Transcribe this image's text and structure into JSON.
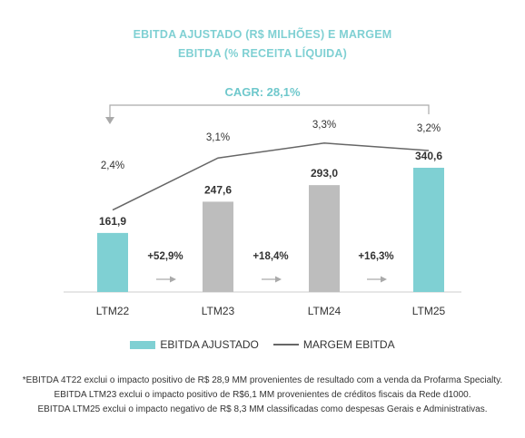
{
  "title_line1": "EBITDA AJUSTADO (R$ MILHÕES) E MARGEM",
  "title_line2": "EBITDA (% RECEITA LÍQUIDA)",
  "cagr": "CAGR: 28,1%",
  "colors": {
    "bar_highlight": "#7fd0d3",
    "bar_neutral": "#bdbdbd",
    "line": "#666666",
    "growth_arrow": "#aaaaaa"
  },
  "chart_data": {
    "type": "bar",
    "categories": [
      "LTM22",
      "LTM23",
      "LTM24",
      "LTM25"
    ],
    "series": [
      {
        "name": "EBITDA AJUSTADO",
        "type": "bar",
        "values": [
          161.9,
          247.6,
          293.0,
          340.6
        ],
        "labels": [
          "161,9",
          "247,6",
          "293,0",
          "340,6"
        ],
        "highlighted": [
          true,
          false,
          false,
          true
        ]
      },
      {
        "name": "MARGEM EBITDA",
        "type": "line",
        "values": [
          2.4,
          3.1,
          3.3,
          3.2
        ],
        "labels": [
          "2,4%",
          "3,1%",
          "3,3%",
          "3,2%"
        ]
      }
    ],
    "growth": [
      "+52,9%",
      "+18,4%",
      "+16,3%"
    ],
    "legend_position": "bottom"
  },
  "legend": {
    "bar_label": "EBITDA AJUSTADO",
    "line_label": "MARGEM EBITDA"
  },
  "notes": [
    "*EBITDA 4T22 exclui o impacto positivo de R$ 28,9 MM provenientes de resultado com a venda da Profarma Specialty.",
    "EBITDA LTM23 exclui o impacto positivo de R$6,1 MM provenientes de créditos fiscais da Rede d1000.",
    "EBITDA LTM25 exclui o impacto negativo de R$ 8,3 MM classificadas como despesas Gerais e Administrativas."
  ]
}
